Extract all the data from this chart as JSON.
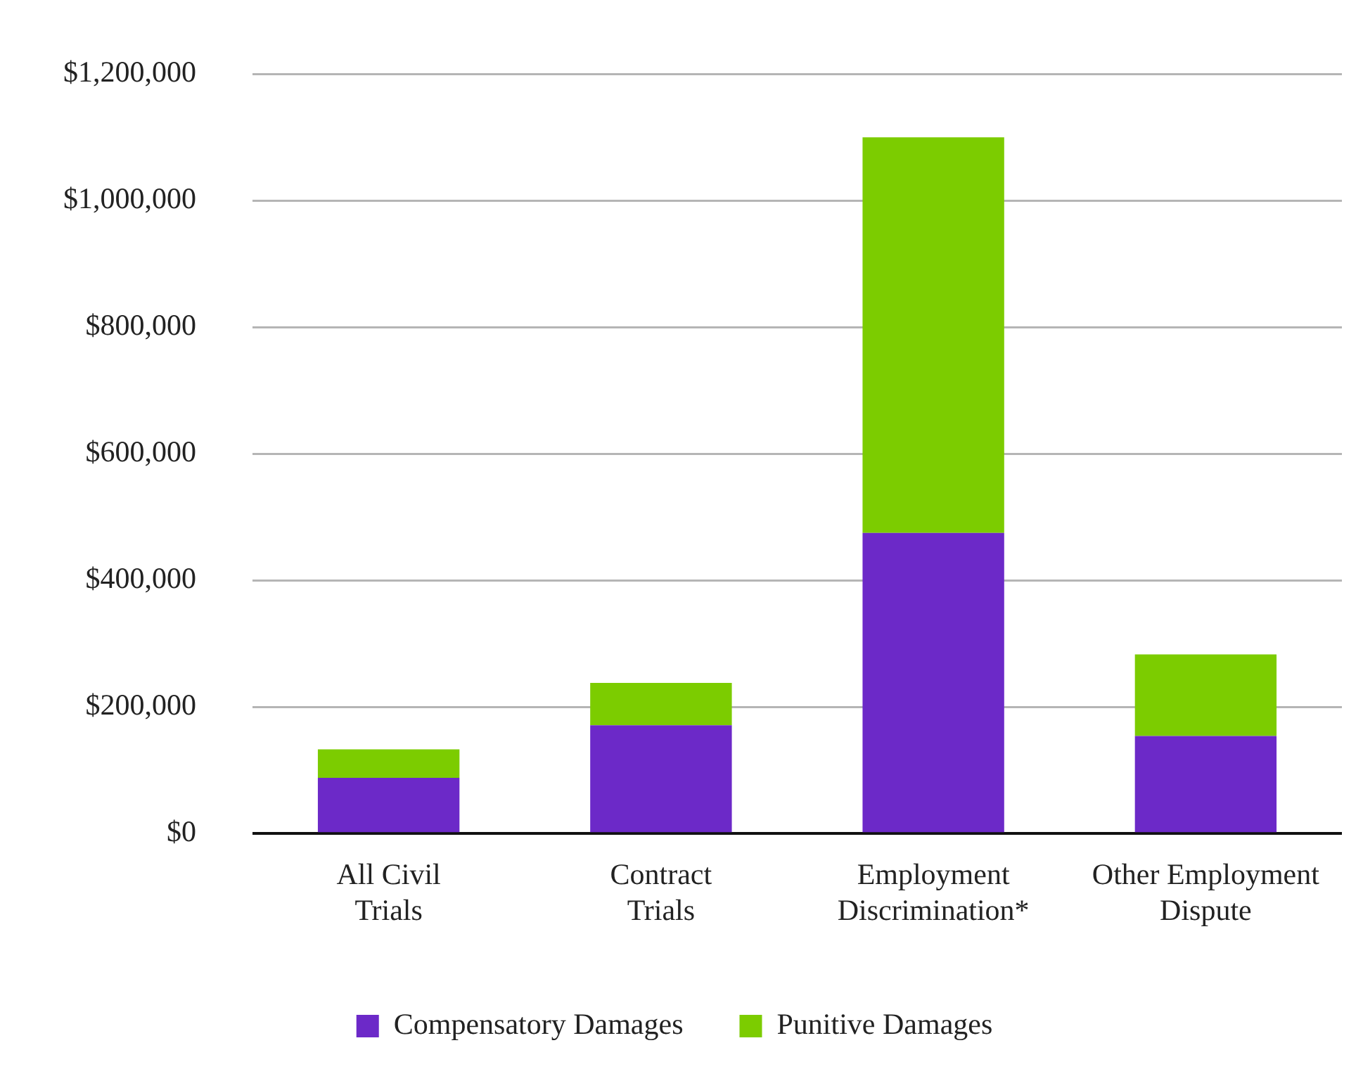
{
  "chart_data": {
    "type": "bar",
    "stacked": true,
    "categories": [
      "All Civil Trials",
      "Contract Trials",
      "Employment Discrimination*",
      "Other Employment Dispute"
    ],
    "series": [
      {
        "name": "Compensatory Damages",
        "color": "#6c29c8",
        "values": [
          88000,
          171000,
          475000,
          154000
        ]
      },
      {
        "name": "Punitive Damages",
        "color": "#7ccc00",
        "values": [
          45000,
          67000,
          625000,
          129000
        ]
      }
    ],
    "ylim": [
      0,
      1200000
    ],
    "yticks": [
      {
        "value": 0,
        "label": "$0"
      },
      {
        "value": 200000,
        "label": "$200,000"
      },
      {
        "value": 400000,
        "label": "$400,000"
      },
      {
        "value": 600000,
        "label": "$600,000"
      },
      {
        "value": 800000,
        "label": "$800,000"
      },
      {
        "value": 1000000,
        "label": "$1,000,000"
      },
      {
        "value": 1200000,
        "label": "$1,200,000"
      }
    ],
    "grid": "y",
    "legend": "bottom"
  }
}
